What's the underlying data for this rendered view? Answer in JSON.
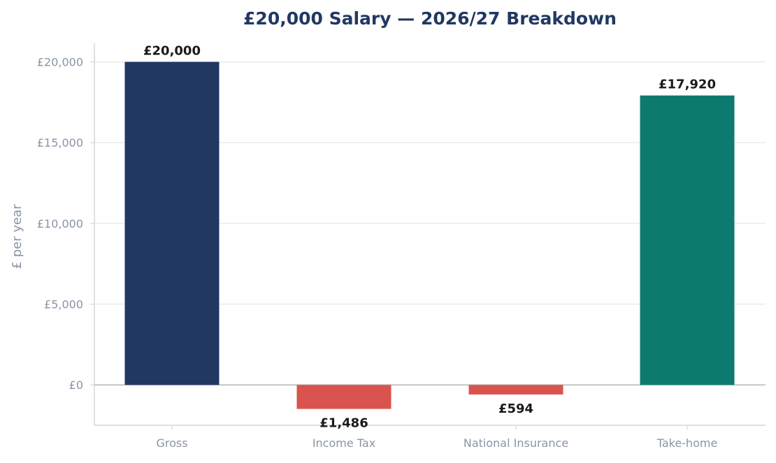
{
  "chart_data": {
    "type": "bar",
    "title": "£20,000 Salary — 2026/27 Breakdown",
    "xlabel": "",
    "ylabel": "£ per year",
    "categories": [
      "Gross",
      "Income Tax",
      "National Insurance",
      "Take-home"
    ],
    "values": [
      20000,
      -1486,
      -594,
      17920
    ],
    "data_labels": [
      "£20,000",
      "£1,486",
      "£594",
      "£17,920"
    ],
    "bar_colors": [
      "#213862",
      "#db534e",
      "#db534e",
      "#0e7a6f"
    ],
    "ylim": [
      -2500,
      21150
    ],
    "yticks": [
      0,
      5000,
      10000,
      15000,
      20000
    ],
    "ytick_labels": [
      "£0",
      "£5,000",
      "£10,000",
      "£15,000",
      "£20,000"
    ],
    "grid": true,
    "legend": "none",
    "colors": {
      "title": "#213862",
      "axis_text": "#8a94a6",
      "grid": "#ebebeb",
      "axis_line": "#d6d6d6",
      "zero_line": "#c4c4c4"
    }
  }
}
